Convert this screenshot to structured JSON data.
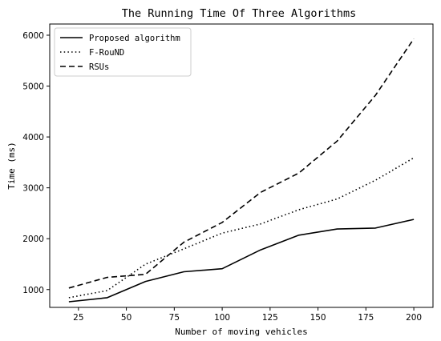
{
  "chart_data": {
    "type": "line",
    "title": "The Running Time Of Three Algorithms",
    "xlabel": "Number of moving vehicles",
    "ylabel": "Time (ms)",
    "x": [
      20,
      40,
      60,
      80,
      100,
      120,
      140,
      160,
      180,
      200
    ],
    "xlim": [
      10,
      210
    ],
    "ylim": [
      650,
      6220
    ],
    "xticks": [
      25,
      50,
      75,
      100,
      125,
      150,
      175,
      200
    ],
    "yticks": [
      1000,
      2000,
      3000,
      4000,
      5000,
      6000
    ],
    "grid": false,
    "legend_position": "top-left",
    "series": [
      {
        "name": "Proposed algorithm",
        "style": "solid",
        "values": [
          760,
          840,
          1160,
          1350,
          1410,
          1780,
          2070,
          2190,
          2210,
          2380
        ]
      },
      {
        "name": "F-RouND",
        "style": "dotted",
        "values": [
          840,
          980,
          1500,
          1800,
          2110,
          2290,
          2570,
          2780,
          3150,
          3590
        ]
      },
      {
        "name": "RSUs",
        "style": "dashed",
        "values": [
          1030,
          1240,
          1300,
          1930,
          2320,
          2910,
          3290,
          3920,
          4820,
          5930
        ]
      }
    ],
    "line_color": "#000000"
  }
}
